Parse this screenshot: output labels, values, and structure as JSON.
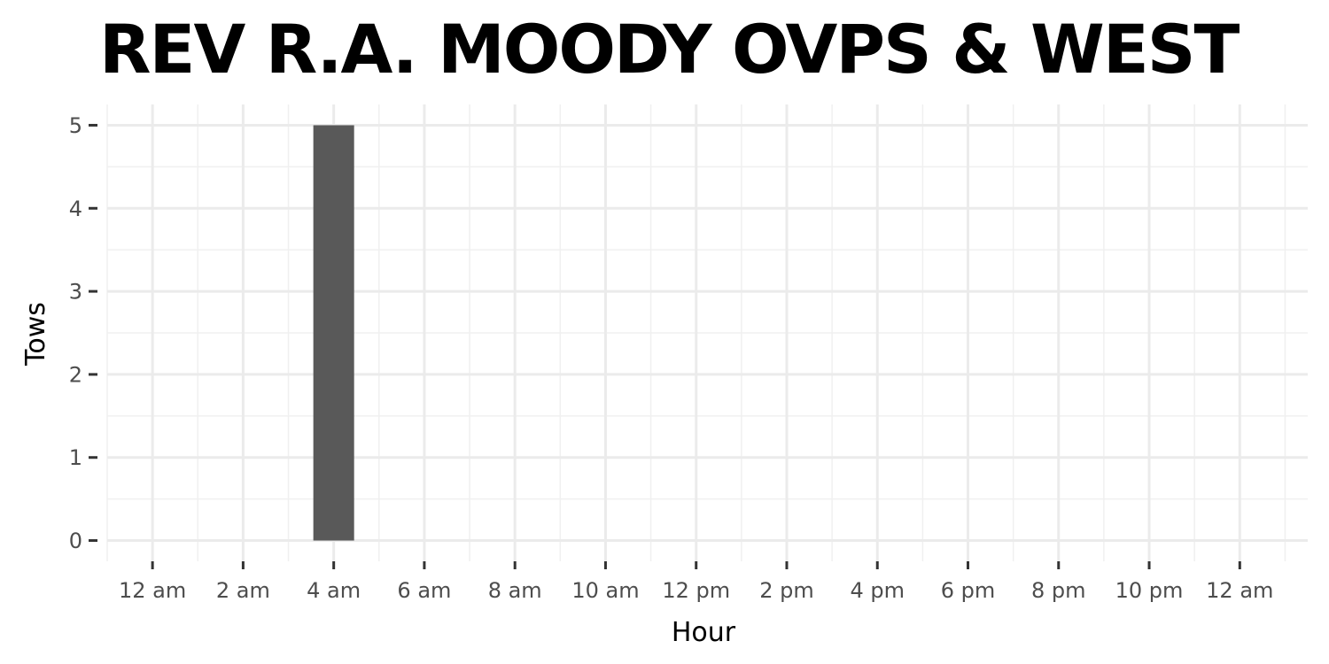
{
  "chart_data": {
    "type": "bar",
    "title": "REV R.A. MOODY OVPS & WEST",
    "xlabel": "Hour",
    "ylabel": "Tows",
    "x_tick_labels": [
      "12 am",
      "2 am",
      "4 am",
      "6 am",
      "8 am",
      "10 am",
      "12 pm",
      "2 pm",
      "4 pm",
      "6 pm",
      "8 pm",
      "10 pm",
      "12 am"
    ],
    "x_tick_hours": [
      0,
      2,
      4,
      6,
      8,
      10,
      12,
      14,
      16,
      18,
      20,
      22,
      24
    ],
    "y_ticks": [
      0,
      1,
      2,
      3,
      4,
      5
    ],
    "xlim": [
      -1,
      25.5
    ],
    "ylim": [
      -0.25,
      5.25
    ],
    "bars": [
      {
        "hour": 4,
        "value": 5
      }
    ],
    "bar_color": "#595959",
    "grid": true,
    "legend": "none"
  }
}
